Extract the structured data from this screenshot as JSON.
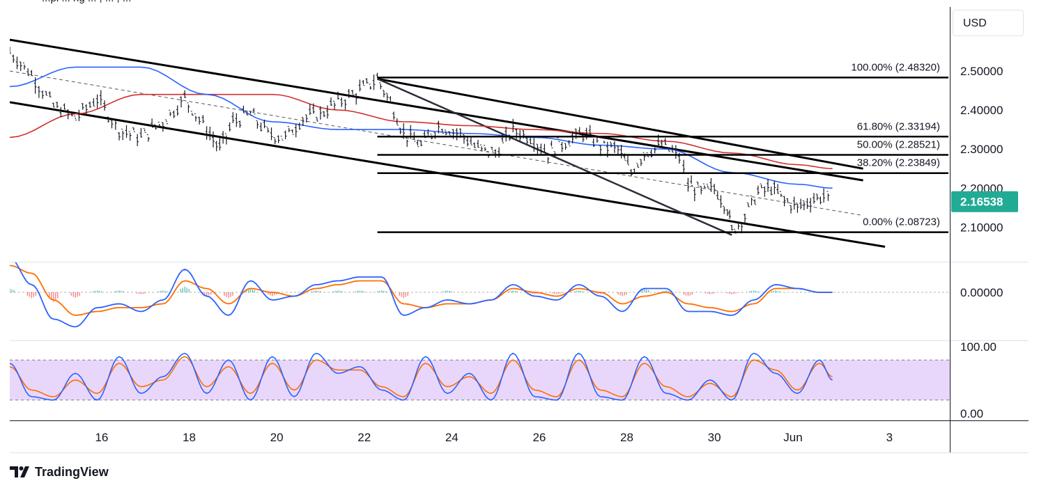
{
  "header": {
    "title_fragment": "...pi ... ng ... , ... , ..."
  },
  "currency_button": "USD",
  "brand": {
    "name": "TradingView",
    "icon": "tradingview-logo-icon"
  },
  "colors": {
    "price_bar": "#131722",
    "ma_fast": "#2962ff",
    "ma_slow": "#d32f2f",
    "current_price_bg": "#22ab94",
    "macd_line": "#2962ff",
    "signal_line": "#ff6d00",
    "hist_pos": "#26a69a",
    "hist_neg": "#ef5350",
    "rsi_band": "#e1c9fa"
  },
  "price_axis": {
    "ticks": [
      "2.50000",
      "2.40000",
      "2.30000",
      "2.20000",
      "2.10000"
    ],
    "current_price": "2.16538"
  },
  "macd_axis": {
    "ticks": [
      "0.00000"
    ]
  },
  "stoch_axis": {
    "ticks": [
      "100.00",
      "0.00"
    ]
  },
  "x_axis": {
    "ticks": [
      "16",
      "18",
      "20",
      "22",
      "24",
      "26",
      "28",
      "30",
      "Jun",
      "3"
    ]
  },
  "fib_levels": [
    {
      "label": "100.00% (2.48320)",
      "price": 2.4832
    },
    {
      "label": "61.80% (2.33194)",
      "price": 2.33194
    },
    {
      "label": "50.00% (2.28521)",
      "price": 2.28521
    },
    {
      "label": "38.20% (2.23849)",
      "price": 2.23849
    },
    {
      "label": "0.00% (2.08723)",
      "price": 2.08723
    }
  ],
  "chart_data": {
    "type": "line",
    "instrument_quote": "USD",
    "x_ticks": [
      "16",
      "18",
      "20",
      "22",
      "24",
      "26",
      "28",
      "30",
      "Jun",
      "3"
    ],
    "ylim": [
      2.04,
      2.58
    ],
    "price_path": [
      [
        14.5,
        2.55
      ],
      [
        15.0,
        2.49
      ],
      [
        15.5,
        2.41
      ],
      [
        16.0,
        2.38
      ],
      [
        16.5,
        2.43
      ],
      [
        17.0,
        2.35
      ],
      [
        17.5,
        2.33
      ],
      [
        18.0,
        2.37
      ],
      [
        18.5,
        2.43
      ],
      [
        19.0,
        2.35
      ],
      [
        19.3,
        2.3
      ],
      [
        19.6,
        2.37
      ],
      [
        20.0,
        2.39
      ],
      [
        20.4,
        2.34
      ],
      [
        20.8,
        2.33
      ],
      [
        21.2,
        2.38
      ],
      [
        21.6,
        2.39
      ],
      [
        22.0,
        2.42
      ],
      [
        22.5,
        2.45
      ],
      [
        22.9,
        2.48
      ],
      [
        23.2,
        2.42
      ],
      [
        23.5,
        2.34
      ],
      [
        23.9,
        2.31
      ],
      [
        24.3,
        2.36
      ],
      [
        24.8,
        2.34
      ],
      [
        25.2,
        2.3
      ],
      [
        25.6,
        2.29
      ],
      [
        26.0,
        2.35
      ],
      [
        26.4,
        2.33
      ],
      [
        26.8,
        2.29
      ],
      [
        27.2,
        2.32
      ],
      [
        27.6,
        2.34
      ],
      [
        28.0,
        2.31
      ],
      [
        28.4,
        2.3
      ],
      [
        28.7,
        2.24
      ],
      [
        29.0,
        2.29
      ],
      [
        29.4,
        2.31
      ],
      [
        29.8,
        2.28
      ],
      [
        30.0,
        2.21
      ],
      [
        30.3,
        2.19
      ],
      [
        30.6,
        2.2
      ],
      [
        30.9,
        2.15
      ],
      [
        31.0,
        2.09
      ],
      [
        31.3,
        2.13
      ],
      [
        31.6,
        2.19
      ],
      [
        31.9,
        2.2
      ],
      [
        32.2,
        2.17
      ],
      [
        32.5,
        2.15
      ],
      [
        32.8,
        2.17
      ],
      [
        33.1,
        2.18
      ],
      [
        33.3,
        2.165
      ]
    ],
    "ma_fast": [
      [
        14.5,
        2.46
      ],
      [
        16,
        2.51
      ],
      [
        17.5,
        2.51
      ],
      [
        19,
        2.44
      ],
      [
        20.5,
        2.37
      ],
      [
        22,
        2.35
      ],
      [
        23.5,
        2.35
      ],
      [
        25,
        2.34
      ],
      [
        26.5,
        2.33
      ],
      [
        28,
        2.31
      ],
      [
        29.5,
        2.3
      ],
      [
        31,
        2.24
      ],
      [
        32.5,
        2.21
      ],
      [
        33.3,
        2.2
      ]
    ],
    "ma_slow": [
      [
        14.5,
        2.33
      ],
      [
        16,
        2.39
      ],
      [
        17.5,
        2.44
      ],
      [
        19,
        2.44
      ],
      [
        20.5,
        2.44
      ],
      [
        22,
        2.4
      ],
      [
        23.5,
        2.37
      ],
      [
        25,
        2.36
      ],
      [
        26.5,
        2.35
      ],
      [
        28,
        2.34
      ],
      [
        29.5,
        2.32
      ],
      [
        31,
        2.29
      ],
      [
        32.5,
        2.26
      ],
      [
        33.3,
        2.25
      ]
    ],
    "channel_upper": [
      [
        14.5,
        2.58
      ],
      [
        34.0,
        2.22
      ]
    ],
    "channel_lower": [
      [
        14.5,
        2.42
      ],
      [
        34.5,
        2.05
      ]
    ],
    "inner_upper": [
      [
        22.9,
        2.48
      ],
      [
        34.0,
        2.25
      ]
    ],
    "inner_trend": [
      [
        22.9,
        2.48
      ],
      [
        31.0,
        2.08
      ]
    ],
    "midline": [
      [
        14.5,
        2.5
      ],
      [
        34.0,
        2.13
      ]
    ],
    "current_price": 2.16538,
    "macd": {
      "zero": 0.0,
      "macd_line": [
        [
          14.5,
          0.9
        ],
        [
          15.0,
          0.2
        ],
        [
          15.5,
          -0.7
        ],
        [
          16.0,
          -0.9
        ],
        [
          16.5,
          -0.4
        ],
        [
          17.0,
          -0.3
        ],
        [
          17.5,
          -0.5
        ],
        [
          18.0,
          -0.2
        ],
        [
          18.5,
          0.6
        ],
        [
          19.0,
          -0.1
        ],
        [
          19.5,
          -0.6
        ],
        [
          20.0,
          0.3
        ],
        [
          20.5,
          -0.2
        ],
        [
          21.0,
          -0.1
        ],
        [
          21.5,
          0.2
        ],
        [
          22.0,
          0.3
        ],
        [
          22.5,
          0.4
        ],
        [
          23.0,
          0.4
        ],
        [
          23.5,
          -0.6
        ],
        [
          24.0,
          -0.4
        ],
        [
          24.5,
          -0.2
        ],
        [
          25.0,
          -0.3
        ],
        [
          25.5,
          -0.2
        ],
        [
          26.0,
          0.2
        ],
        [
          26.5,
          -0.1
        ],
        [
          27.0,
          -0.2
        ],
        [
          27.5,
          0.2
        ],
        [
          28.0,
          -0.1
        ],
        [
          28.5,
          -0.5
        ],
        [
          29.0,
          0.1
        ],
        [
          29.5,
          0.1
        ],
        [
          30.0,
          -0.5
        ],
        [
          30.5,
          -0.5
        ],
        [
          31.0,
          -0.6
        ],
        [
          31.5,
          -0.2
        ],
        [
          32.0,
          0.2
        ],
        [
          32.5,
          0.1
        ],
        [
          33.0,
          0.0
        ],
        [
          33.3,
          0.0
        ]
      ],
      "signal_line": [
        [
          14.5,
          0.7
        ],
        [
          15.0,
          0.5
        ],
        [
          15.5,
          -0.2
        ],
        [
          16.0,
          -0.6
        ],
        [
          16.5,
          -0.5
        ],
        [
          17.0,
          -0.4
        ],
        [
          17.5,
          -0.4
        ],
        [
          18.0,
          -0.3
        ],
        [
          18.5,
          0.3
        ],
        [
          19.0,
          0.1
        ],
        [
          19.5,
          -0.3
        ],
        [
          20.0,
          0.1
        ],
        [
          20.5,
          0.0
        ],
        [
          21.0,
          -0.1
        ],
        [
          21.5,
          0.1
        ],
        [
          22.0,
          0.2
        ],
        [
          22.5,
          0.3
        ],
        [
          23.0,
          0.3
        ],
        [
          23.5,
          -0.3
        ],
        [
          24.0,
          -0.4
        ],
        [
          24.5,
          -0.3
        ],
        [
          25.0,
          -0.3
        ],
        [
          25.5,
          -0.2
        ],
        [
          26.0,
          0.1
        ],
        [
          26.5,
          0.0
        ],
        [
          27.0,
          -0.1
        ],
        [
          27.5,
          0.1
        ],
        [
          28.0,
          0.0
        ],
        [
          28.5,
          -0.3
        ],
        [
          29.0,
          -0.1
        ],
        [
          29.5,
          0.0
        ],
        [
          30.0,
          -0.3
        ],
        [
          30.5,
          -0.4
        ],
        [
          31.0,
          -0.5
        ],
        [
          31.5,
          -0.3
        ],
        [
          32.0,
          0.1
        ],
        [
          32.5,
          0.1
        ],
        [
          33.0,
          0.0
        ],
        [
          33.3,
          0.0
        ]
      ]
    },
    "stochastic": {
      "ylim": [
        0,
        100
      ],
      "band": [
        20,
        80
      ],
      "k_line": [
        [
          14.5,
          75
        ],
        [
          15.0,
          25
        ],
        [
          15.5,
          20
        ],
        [
          16.0,
          60
        ],
        [
          16.5,
          20
        ],
        [
          17.0,
          85
        ],
        [
          17.5,
          30
        ],
        [
          18.0,
          55
        ],
        [
          18.5,
          90
        ],
        [
          19.0,
          30
        ],
        [
          19.5,
          80
        ],
        [
          20.0,
          20
        ],
        [
          20.5,
          85
        ],
        [
          21.0,
          25
        ],
        [
          21.5,
          90
        ],
        [
          22.0,
          60
        ],
        [
          22.5,
          70
        ],
        [
          23.0,
          35
        ],
        [
          23.5,
          20
        ],
        [
          24.0,
          85
        ],
        [
          24.5,
          30
        ],
        [
          25.0,
          60
        ],
        [
          25.5,
          20
        ],
        [
          26.0,
          90
        ],
        [
          26.5,
          25
        ],
        [
          27.0,
          20
        ],
        [
          27.5,
          90
        ],
        [
          28.0,
          25
        ],
        [
          28.5,
          20
        ],
        [
          29.0,
          85
        ],
        [
          29.5,
          30
        ],
        [
          30.0,
          20
        ],
        [
          30.5,
          50
        ],
        [
          31.0,
          20
        ],
        [
          31.5,
          90
        ],
        [
          32.0,
          60
        ],
        [
          32.5,
          30
        ],
        [
          33.0,
          80
        ],
        [
          33.3,
          50
        ]
      ],
      "d_line": [
        [
          14.5,
          70
        ],
        [
          15.0,
          35
        ],
        [
          15.5,
          25
        ],
        [
          16.0,
          50
        ],
        [
          16.5,
          30
        ],
        [
          17.0,
          75
        ],
        [
          17.5,
          40
        ],
        [
          18.0,
          50
        ],
        [
          18.5,
          85
        ],
        [
          19.0,
          40
        ],
        [
          19.5,
          70
        ],
        [
          20.0,
          30
        ],
        [
          20.5,
          75
        ],
        [
          21.0,
          35
        ],
        [
          21.5,
          80
        ],
        [
          22.0,
          65
        ],
        [
          22.5,
          65
        ],
        [
          23.0,
          40
        ],
        [
          23.5,
          25
        ],
        [
          24.0,
          75
        ],
        [
          24.5,
          40
        ],
        [
          25.0,
          55
        ],
        [
          25.5,
          30
        ],
        [
          26.0,
          80
        ],
        [
          26.5,
          35
        ],
        [
          27.0,
          25
        ],
        [
          27.5,
          80
        ],
        [
          28.0,
          35
        ],
        [
          28.5,
          25
        ],
        [
          29.0,
          75
        ],
        [
          29.5,
          40
        ],
        [
          30.0,
          25
        ],
        [
          30.5,
          45
        ],
        [
          31.0,
          25
        ],
        [
          31.5,
          80
        ],
        [
          32.0,
          65
        ],
        [
          32.5,
          35
        ],
        [
          33.0,
          75
        ],
        [
          33.3,
          55
        ]
      ]
    }
  }
}
